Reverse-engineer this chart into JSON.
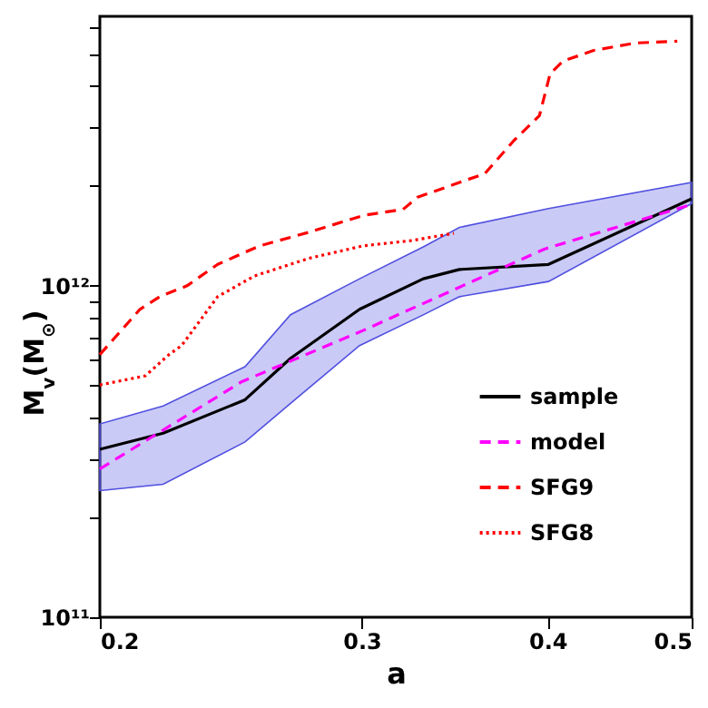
{
  "chart_data": {
    "type": "line",
    "xlabel": "a",
    "ylabel": "M$_{v}$(M$_{⊙}$)",
    "log": "xy",
    "xlim": [
      0.2,
      0.5
    ],
    "ylim": [
      100000000000.0,
      6500000000000.0
    ],
    "xticks": [
      0.2,
      0.3,
      0.4,
      0.5
    ],
    "yticks": [
      {
        "value": 100000000000.0,
        "label": "10¹¹"
      },
      {
        "value": 200000000000.0,
        "label": null
      },
      {
        "value": 300000000000.0,
        "label": null
      },
      {
        "value": 400000000000.0,
        "label": null
      },
      {
        "value": 500000000000.0,
        "label": null
      },
      {
        "value": 600000000000.0,
        "label": null
      },
      {
        "value": 700000000000.0,
        "label": null
      },
      {
        "value": 800000000000.0,
        "label": null
      },
      {
        "value": 900000000000.0,
        "label": null
      },
      {
        "value": 1000000000000.0,
        "label": "10¹²"
      },
      {
        "value": 2000000000000.0,
        "label": null
      },
      {
        "value": 3000000000000.0,
        "label": null
      },
      {
        "value": 4000000000000.0,
        "label": null
      },
      {
        "value": 5000000000000.0,
        "label": null
      },
      {
        "value": 6000000000000.0,
        "label": null
      }
    ],
    "legend": "bottom right",
    "grid": false,
    "series": [
      {
        "name": "sample",
        "color": "#000000",
        "line_style": "solid",
        "x": [
          0.2,
          0.2206,
          0.2504,
          0.2687,
          0.299,
          0.33,
          0.349,
          0.4006,
          0.5
        ],
        "values": [
          321000000000.0,
          359000000000.0,
          453000000000.0,
          604000000000.0,
          849000000000.0,
          1050000000000.0,
          1120000000000.0,
          1160000000000.0,
          1830000000000.0
        ],
        "lower": [
          241000000000.0,
          252000000000.0,
          338000000000.0,
          442000000000.0,
          660000000000.0,
          817000000000.0,
          927000000000.0,
          1030000000000.0,
          1770000000000.0
        ],
        "upper": [
          383000000000.0,
          434000000000.0,
          570000000000.0,
          818000000000.0,
          1050000000000.0,
          1310000000000.0,
          1500000000000.0,
          1710000000000.0,
          2050000000000.0
        ]
      },
      {
        "name": "model",
        "color": "#ff00ff",
        "line_style": "dashed",
        "x": [
          0.2,
          0.249,
          0.3006,
          0.398,
          0.5
        ],
        "values": [
          280000000000.0,
          513000000000.0,
          733000000000.0,
          1290000000000.0,
          1760000000000.0
        ]
      },
      {
        "name": "SFG9",
        "color": "#ff0000",
        "line_style": "dashed",
        "x": [
          0.2,
          0.2128,
          0.2194,
          0.2289,
          0.24,
          0.2562,
          0.2764,
          0.3007,
          0.3198,
          0.3271,
          0.349,
          0.363,
          0.3796,
          0.395,
          0.4016,
          0.4096,
          0.4297,
          0.4583,
          0.489
        ],
        "values": [
          620000000000.0,
          849000000000.0,
          927000000000.0,
          1000000000000.0,
          1160000000000.0,
          1320000000000.0,
          1450000000000.0,
          1630000000000.0,
          1700000000000.0,
          1850000000000.0,
          2050000000000.0,
          2180000000000.0,
          2740000000000.0,
          3260000000000.0,
          4360000000000.0,
          4760000000000.0,
          5130000000000.0,
          5400000000000.0,
          5470000000000.0
        ]
      },
      {
        "name": "SFG8",
        "color": "#ff0000",
        "line_style": "dotted",
        "x": [
          0.2,
          0.2146,
          0.2226,
          0.227,
          0.24,
          0.254,
          0.2764,
          0.3007,
          0.3244,
          0.346
        ],
        "values": [
          502000000000.0,
          535000000000.0,
          620000000000.0,
          660000000000.0,
          927000000000.0,
          1070000000000.0,
          1210000000000.0,
          1320000000000.0,
          1370000000000.0,
          1440000000000.0
        ]
      }
    ]
  }
}
